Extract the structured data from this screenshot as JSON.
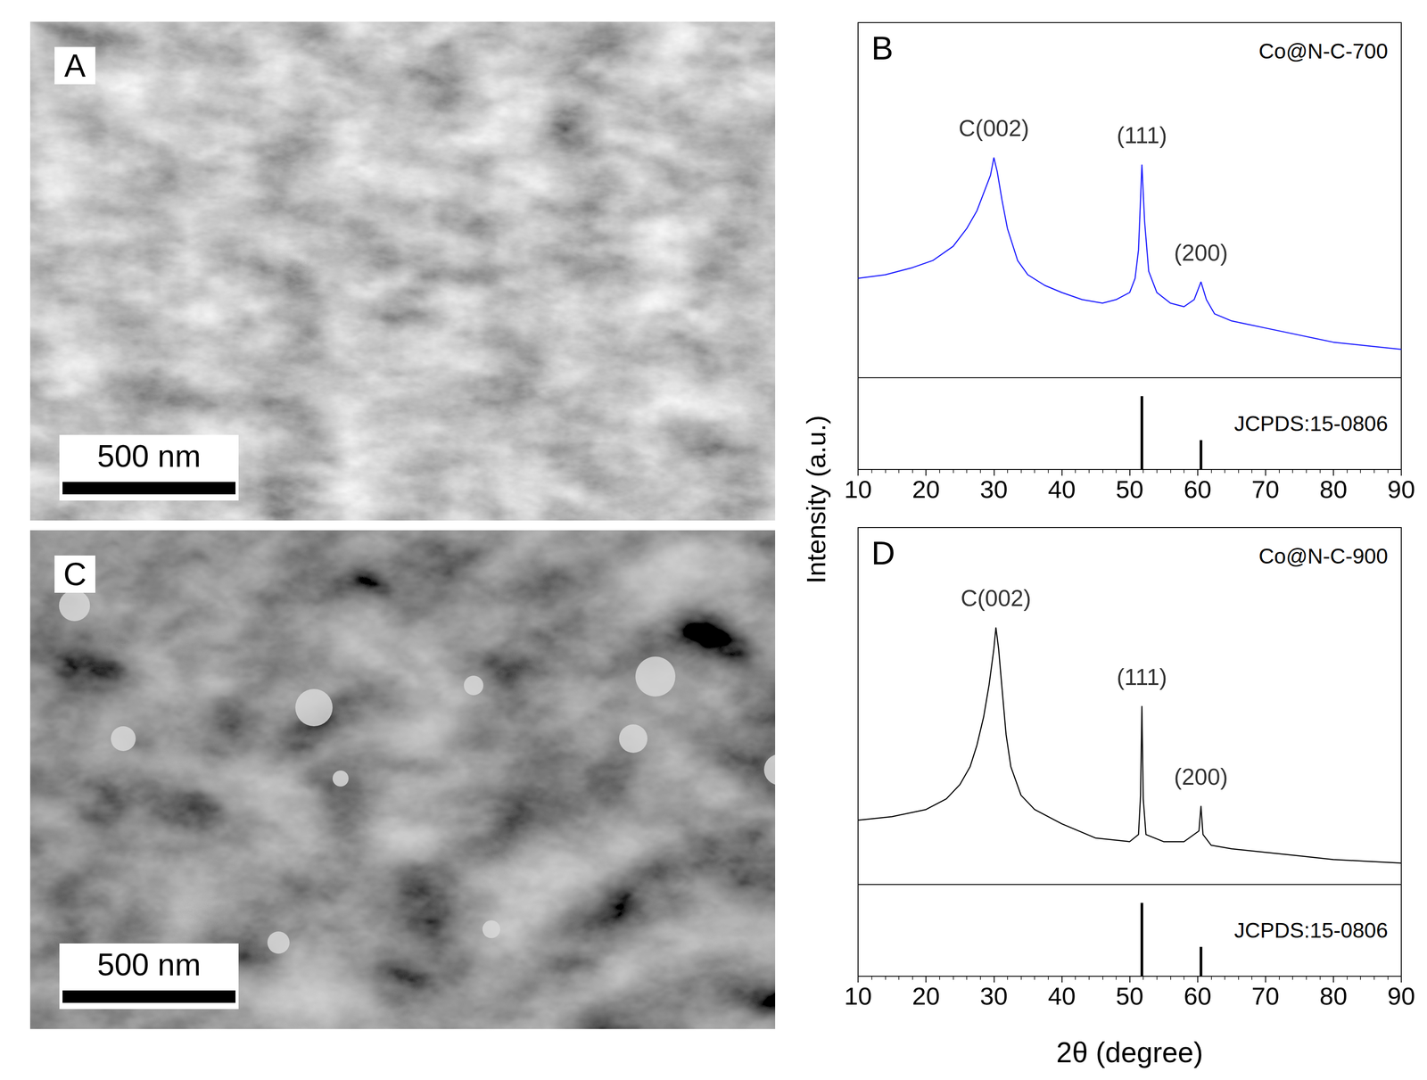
{
  "chart_data": [
    {
      "type": "line",
      "panel": "B",
      "name": "Co@N-C-700",
      "color": "#1a1aff",
      "x": [
        10,
        14,
        18,
        21,
        24,
        26,
        27.5,
        28.5,
        29.5,
        30,
        30.5,
        31.2,
        32,
        33.5,
        35,
        37.5,
        40,
        43,
        46,
        48,
        50,
        50.8,
        51.3,
        51.8,
        52.2,
        52.8,
        54,
        56,
        58,
        59.5,
        60.5,
        61.3,
        62.5,
        65,
        70,
        75,
        80,
        85,
        90
      ],
      "values": [
        28,
        29,
        31,
        33,
        37,
        42,
        47,
        52,
        57,
        62,
        58,
        50,
        42,
        33,
        29,
        26,
        24,
        22,
        21,
        22,
        24,
        28,
        36,
        60,
        44,
        30,
        24,
        21,
        20,
        22,
        27,
        22,
        18,
        16,
        14,
        12,
        10,
        9,
        8
      ],
      "xlim": [
        10,
        90
      ],
      "xticks": [
        10,
        20,
        30,
        40,
        50,
        60,
        70,
        80,
        90
      ],
      "ylim": [
        0,
        100
      ],
      "tick_labels": "x",
      "grid": false,
      "annotations": [
        {
          "text": "C(002)",
          "x": 30
        },
        {
          "text": "(111)",
          "x": 51.8
        },
        {
          "text": "(200)",
          "x": 60.5
        }
      ],
      "reference": {
        "name": "JCPDS:15-0806",
        "type": "bar",
        "color": "#000000",
        "x": [
          51.8,
          60.5
        ],
        "values": [
          100,
          40
        ],
        "ylim": [
          0,
          125
        ]
      }
    },
    {
      "type": "line",
      "panel": "D",
      "name": "Co@N-C-900",
      "color": "#000000",
      "x": [
        10,
        15,
        20,
        23,
        25,
        26.5,
        27.5,
        28.5,
        29.3,
        30,
        30.3,
        30.7,
        31.2,
        31.8,
        32.5,
        34,
        36,
        40,
        45,
        50,
        51.3,
        51.6,
        51.8,
        52,
        52.4,
        55,
        58,
        60.2,
        60.5,
        60.8,
        62,
        65,
        70,
        75,
        80,
        85,
        90
      ],
      "values": [
        18,
        19,
        21,
        24,
        28,
        33,
        39,
        47,
        56,
        66,
        72,
        66,
        55,
        42,
        33,
        25,
        21,
        17,
        13,
        12,
        14,
        25,
        50,
        24,
        14,
        12,
        12,
        15,
        22,
        14,
        11,
        10,
        9,
        8,
        7,
        6.5,
        6
      ],
      "xlim": [
        10,
        90
      ],
      "xticks": [
        10,
        20,
        30,
        40,
        50,
        60,
        70,
        80,
        90
      ],
      "ylim": [
        0,
        100
      ],
      "tick_labels": "x",
      "grid": false,
      "xlabel": "2θ (degree)",
      "annotations": [
        {
          "text": "C(002)",
          "x": 30.3
        },
        {
          "text": "(111)",
          "x": 51.8
        },
        {
          "text": "(200)",
          "x": 60.5
        }
      ],
      "reference": {
        "name": "JCPDS:15-0806",
        "type": "bar",
        "color": "#000000",
        "x": [
          51.8,
          60.5
        ],
        "values": [
          100,
          40
        ],
        "ylim": [
          0,
          125
        ]
      }
    }
  ],
  "ylabel": "Intensity (a.u.)",
  "images": [
    {
      "panel": "A",
      "scale_bar": "500 nm"
    },
    {
      "panel": "C",
      "scale_bar": "500 nm"
    }
  ]
}
